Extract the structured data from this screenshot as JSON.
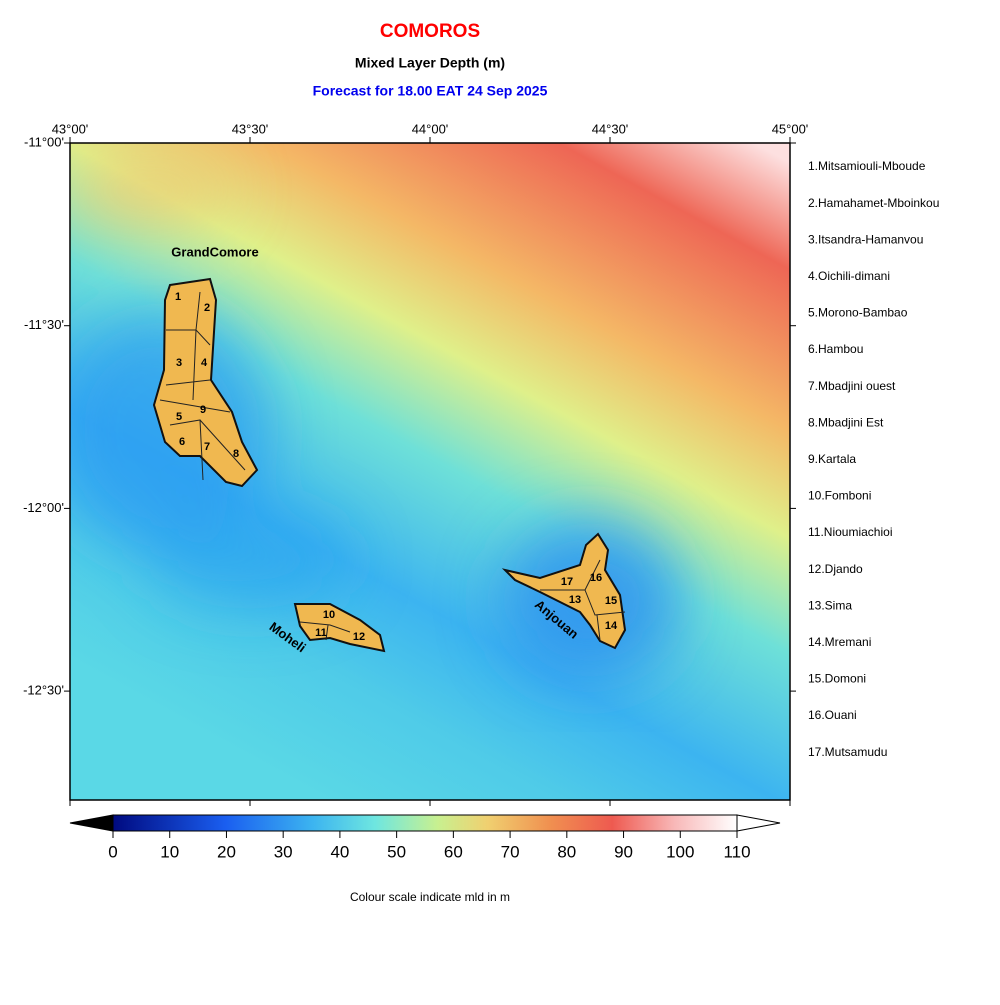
{
  "header": {
    "title": "COMOROS",
    "subtitle": "Mixed Layer Depth (m)",
    "forecast": "Forecast for  18.00 EAT 24 Sep 2025"
  },
  "map": {
    "lon_ticks": [
      "43°00'",
      "43°30'",
      "44°00'",
      "44°30'",
      "45°00'"
    ],
    "lat_ticks": [
      "-11°00'",
      "-11°30'",
      "-12°00'",
      "-12°30'"
    ],
    "islands": [
      "GrandComore",
      "Moheli",
      "Anjouan"
    ],
    "district_numbers": [
      "1",
      "2",
      "3",
      "4",
      "5",
      "6",
      "7",
      "8",
      "9",
      "10",
      "11",
      "12",
      "13",
      "14",
      "15",
      "16",
      "17"
    ]
  },
  "legend": {
    "items": [
      "1.Mitsamiouli-Mboude",
      "2.Hamahamet-Mboinkou",
      "3.Itsandra-Hamanvou",
      "4.Oichili-dimani",
      "5.Morono-Bambao",
      "6.Hambou",
      "7.Mbadjini ouest",
      "8.Mbadjini Est",
      "9.Kartala",
      "10.Fomboni",
      "11.Nioumiachioi",
      "12.Djando",
      "13.Sima",
      "14.Mremani",
      "15.Domoni",
      "16.Ouani",
      "17.Mutsamudu"
    ]
  },
  "colorbar": {
    "ticks": [
      0,
      10,
      20,
      30,
      40,
      50,
      60,
      70,
      80,
      90,
      100,
      110
    ],
    "caption": "Colour scale indicate mld in m"
  }
}
